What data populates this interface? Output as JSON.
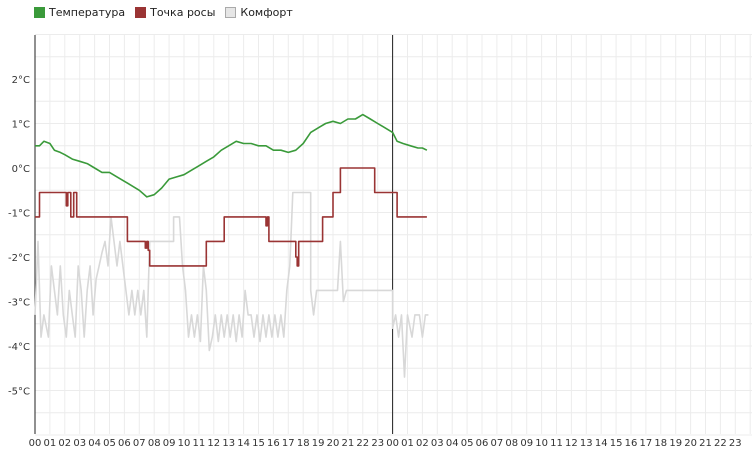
{
  "chart_data": {
    "type": "line",
    "y_unit": "°C",
    "y_ticks": [
      {
        "value": 2,
        "label": "2°C"
      },
      {
        "value": 1,
        "label": "1°C"
      },
      {
        "value": 0,
        "label": "0°C"
      },
      {
        "value": -1,
        "label": "-1°C"
      },
      {
        "value": -2,
        "label": "-2°C"
      },
      {
        "value": -3,
        "label": "-3°C"
      },
      {
        "value": -4,
        "label": "-4°C"
      },
      {
        "value": -5,
        "label": "-5°C"
      }
    ],
    "ylim": [
      -6,
      3
    ],
    "x_hours_range": [
      0,
      48
    ],
    "x_tick_labels": [
      "00",
      "01",
      "02",
      "03",
      "04",
      "05",
      "06",
      "07",
      "08",
      "09",
      "10",
      "11",
      "12",
      "13",
      "14",
      "15",
      "16",
      "17",
      "18",
      "19",
      "20",
      "21",
      "22",
      "23",
      "00",
      "01",
      "02",
      "03",
      "04",
      "05",
      "06",
      "07",
      "08",
      "09",
      "10",
      "11",
      "12",
      "13",
      "14",
      "15",
      "16",
      "17",
      "18",
      "19",
      "20",
      "21",
      "22",
      "23"
    ],
    "day_boundaries": [
      0,
      24
    ],
    "grid": true,
    "legend_position": "top-left",
    "series": [
      {
        "name": "Температура",
        "color": "#3a9a3a",
        "step": false,
        "points": [
          [
            0,
            0.5
          ],
          [
            0.3,
            0.5
          ],
          [
            0.6,
            0.6
          ],
          [
            1,
            0.55
          ],
          [
            1.3,
            0.4
          ],
          [
            1.7,
            0.35
          ],
          [
            2,
            0.3
          ],
          [
            2.5,
            0.2
          ],
          [
            3,
            0.15
          ],
          [
            3.5,
            0.1
          ],
          [
            4,
            0.0
          ],
          [
            4.5,
            -0.1
          ],
          [
            5,
            -0.1
          ],
          [
            5.5,
            -0.2
          ],
          [
            6,
            -0.3
          ],
          [
            6.5,
            -0.4
          ],
          [
            7,
            -0.5
          ],
          [
            7.5,
            -0.65
          ],
          [
            8,
            -0.6
          ],
          [
            8.5,
            -0.45
          ],
          [
            9,
            -0.25
          ],
          [
            9.5,
            -0.2
          ],
          [
            10,
            -0.15
          ],
          [
            10.5,
            -0.05
          ],
          [
            11,
            0.05
          ],
          [
            11.5,
            0.15
          ],
          [
            12,
            0.25
          ],
          [
            12.5,
            0.4
          ],
          [
            13,
            0.5
          ],
          [
            13.5,
            0.6
          ],
          [
            14,
            0.55
          ],
          [
            14.5,
            0.55
          ],
          [
            15,
            0.5
          ],
          [
            15.5,
            0.5
          ],
          [
            16,
            0.4
          ],
          [
            16.5,
            0.4
          ],
          [
            17,
            0.35
          ],
          [
            17.5,
            0.4
          ],
          [
            18,
            0.55
          ],
          [
            18.5,
            0.8
          ],
          [
            19,
            0.9
          ],
          [
            19.5,
            1.0
          ],
          [
            20,
            1.05
          ],
          [
            20.5,
            1.0
          ],
          [
            21,
            1.1
          ],
          [
            21.5,
            1.1
          ],
          [
            22,
            1.2
          ],
          [
            22.5,
            1.1
          ],
          [
            23,
            1.0
          ],
          [
            23.5,
            0.9
          ],
          [
            24,
            0.8
          ],
          [
            24.3,
            0.6
          ],
          [
            24.7,
            0.55
          ],
          [
            25.2,
            0.5
          ],
          [
            25.7,
            0.45
          ],
          [
            26,
            0.45
          ],
          [
            26.3,
            0.4
          ]
        ]
      },
      {
        "name": "Точка росы",
        "color": "#9a3434",
        "step": true,
        "points": [
          [
            0,
            -1.1
          ],
          [
            0.3,
            -0.55
          ],
          [
            1.5,
            -0.55
          ],
          [
            2,
            -0.55
          ],
          [
            2.1,
            -0.85
          ],
          [
            2.2,
            -0.55
          ],
          [
            2.4,
            -1.1
          ],
          [
            2.6,
            -0.55
          ],
          [
            2.8,
            -1.1
          ],
          [
            6.2,
            -1.1
          ],
          [
            6.2,
            -1.65
          ],
          [
            7.4,
            -1.65
          ],
          [
            7.4,
            -1.8
          ],
          [
            7.5,
            -1.65
          ],
          [
            7.6,
            -1.85
          ],
          [
            7.7,
            -2.2
          ],
          [
            11.5,
            -2.2
          ],
          [
            11.5,
            -1.65
          ],
          [
            12.7,
            -1.65
          ],
          [
            12.7,
            -1.1
          ],
          [
            15.5,
            -1.1
          ],
          [
            15.5,
            -1.3
          ],
          [
            15.6,
            -1.1
          ],
          [
            15.7,
            -1.65
          ],
          [
            17.5,
            -1.65
          ],
          [
            17.5,
            -2.0
          ],
          [
            17.6,
            -2.2
          ],
          [
            17.7,
            -1.65
          ],
          [
            19.3,
            -1.65
          ],
          [
            19.3,
            -1.1
          ],
          [
            20,
            -1.1
          ],
          [
            20,
            -0.55
          ],
          [
            20.5,
            -0.55
          ],
          [
            20.5,
            0.0
          ],
          [
            22.8,
            0.0
          ],
          [
            22.8,
            -0.55
          ],
          [
            24.3,
            -0.55
          ],
          [
            24.3,
            -1.1
          ],
          [
            26.3,
            -1.1
          ]
        ]
      },
      {
        "name": "Комфорт",
        "color": "#d8d8d8",
        "step": false,
        "points": [
          [
            0,
            -3.3
          ],
          [
            0.2,
            -1.65
          ],
          [
            0.4,
            -3.8
          ],
          [
            0.6,
            -3.3
          ],
          [
            0.9,
            -3.8
          ],
          [
            1.1,
            -2.2
          ],
          [
            1.3,
            -2.75
          ],
          [
            1.5,
            -3.3
          ],
          [
            1.7,
            -2.2
          ],
          [
            1.9,
            -3.3
          ],
          [
            2.1,
            -3.8
          ],
          [
            2.3,
            -2.75
          ],
          [
            2.5,
            -3.3
          ],
          [
            2.7,
            -3.8
          ],
          [
            2.9,
            -2.2
          ],
          [
            3.1,
            -2.75
          ],
          [
            3.3,
            -3.8
          ],
          [
            3.5,
            -2.75
          ],
          [
            3.7,
            -2.2
          ],
          [
            3.9,
            -3.3
          ],
          [
            4.1,
            -2.5
          ],
          [
            4.3,
            -2.2
          ],
          [
            4.5,
            -1.9
          ],
          [
            4.7,
            -1.65
          ],
          [
            4.9,
            -2.2
          ],
          [
            5.1,
            -1.1
          ],
          [
            5.3,
            -1.65
          ],
          [
            5.5,
            -2.2
          ],
          [
            5.7,
            -1.65
          ],
          [
            5.9,
            -2.2
          ],
          [
            6.1,
            -2.75
          ],
          [
            6.3,
            -3.3
          ],
          [
            6.5,
            -2.75
          ],
          [
            6.7,
            -3.3
          ],
          [
            6.9,
            -2.75
          ],
          [
            7.1,
            -3.3
          ],
          [
            7.3,
            -2.75
          ],
          [
            7.5,
            -3.8
          ],
          [
            7.7,
            -1.65
          ],
          [
            7.9,
            -1.65
          ],
          [
            9.3,
            -1.65
          ],
          [
            9.3,
            -1.1
          ],
          [
            9.7,
            -1.1
          ],
          [
            9.9,
            -2.2
          ],
          [
            10.1,
            -2.75
          ],
          [
            10.3,
            -3.8
          ],
          [
            10.5,
            -3.3
          ],
          [
            10.7,
            -3.8
          ],
          [
            10.9,
            -3.3
          ],
          [
            11.1,
            -3.9
          ],
          [
            11.3,
            -2.2
          ],
          [
            11.5,
            -2.75
          ],
          [
            11.7,
            -4.1
          ],
          [
            11.9,
            -3.8
          ],
          [
            12.1,
            -3.3
          ],
          [
            12.3,
            -3.9
          ],
          [
            12.5,
            -3.3
          ],
          [
            12.7,
            -3.8
          ],
          [
            12.9,
            -3.3
          ],
          [
            13.1,
            -3.8
          ],
          [
            13.3,
            -3.3
          ],
          [
            13.5,
            -3.9
          ],
          [
            13.7,
            -3.3
          ],
          [
            13.9,
            -3.8
          ],
          [
            14.1,
            -2.75
          ],
          [
            14.3,
            -3.3
          ],
          [
            14.5,
            -3.3
          ],
          [
            14.7,
            -3.8
          ],
          [
            14.9,
            -3.3
          ],
          [
            15.1,
            -3.9
          ],
          [
            15.3,
            -3.3
          ],
          [
            15.5,
            -3.8
          ],
          [
            15.7,
            -3.3
          ],
          [
            15.9,
            -3.8
          ],
          [
            16.1,
            -3.3
          ],
          [
            16.3,
            -3.8
          ],
          [
            16.5,
            -3.3
          ],
          [
            16.7,
            -3.8
          ],
          [
            16.9,
            -2.75
          ],
          [
            17.1,
            -2.2
          ],
          [
            17.3,
            -0.55
          ],
          [
            18.5,
            -0.55
          ],
          [
            18.5,
            -2.75
          ],
          [
            18.7,
            -3.3
          ],
          [
            18.9,
            -2.75
          ],
          [
            20.3,
            -2.75
          ],
          [
            20.5,
            -1.65
          ],
          [
            20.7,
            -3.0
          ],
          [
            20.9,
            -2.75
          ],
          [
            24,
            -2.75
          ],
          [
            24,
            -3.6
          ],
          [
            24.2,
            -3.3
          ],
          [
            24.4,
            -3.8
          ],
          [
            24.6,
            -3.3
          ],
          [
            24.8,
            -4.7
          ],
          [
            25,
            -3.3
          ],
          [
            25.3,
            -3.8
          ],
          [
            25.5,
            -3.3
          ],
          [
            25.8,
            -3.3
          ],
          [
            26,
            -3.8
          ],
          [
            26.2,
            -3.3
          ],
          [
            26.4,
            -3.3
          ]
        ]
      }
    ]
  }
}
